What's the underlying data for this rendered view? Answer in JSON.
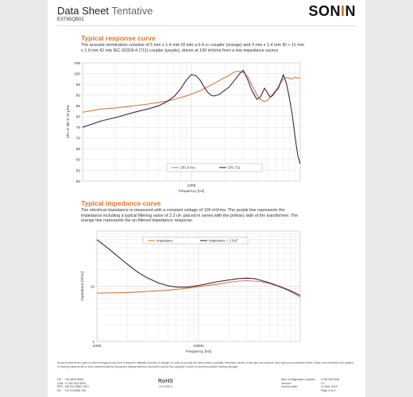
{
  "header": {
    "title_main": "Data Sheet",
    "title_status": "Tentative",
    "product_code": "EST65QB02",
    "logo_pre": "SON",
    "logo_o": "I",
    "logo_post": "N"
  },
  "sections": [
    {
      "title": "Typical response curve",
      "description": "The acoustic termination consists of 5 mm x 1.4 mm ID into a 0.4 cc coupler (orange) and 3 mm x 1.4 mm ID + 11 mm x 1.9 mm ID into IEC 60318-4 (711) coupler (purple), driven at 100 mVrms from a low impedance source"
    },
    {
      "title": "Typical impedance curve",
      "description": "The electrical impedance is measured with a constant voltage of 100 mVrms. The purple line represents the impedance including a typical filtering value of 2.2 uF, placed in series with the primary side of the transformer. The orange line represents the un-filtered impedance response."
    }
  ],
  "chart_data": [
    {
      "type": "line",
      "x_scale": "log",
      "xlim": [
        100,
        10000
      ],
      "ylim": [
        50,
        105
      ],
      "ylabel": "SPL in dB re 20 µPa",
      "xlabel": "Frequency [Hz]",
      "x_tick_labels": [
        "1000"
      ],
      "y_tick_labels": [
        "105",
        "100",
        "95",
        "90",
        "85",
        "80",
        "75",
        "70",
        "65",
        "60",
        "55",
        "50"
      ],
      "grid": true,
      "legend_placement": "bottom-center",
      "series": [
        {
          "name": "SPL 0.4cc",
          "color": "#d77a38",
          "x": [
            100,
            150,
            200,
            300,
            400,
            500,
            600,
            700,
            800,
            900,
            1000,
            1200,
            1500,
            1700,
            2000,
            2200,
            2500,
            2700,
            3000,
            3300,
            3700,
            4000,
            4300,
            4700,
            5000,
            5300,
            5600,
            6000,
            6500,
            7000,
            7500,
            8000,
            8500,
            9000,
            9500,
            10000
          ],
          "y": [
            82,
            83.5,
            84,
            85,
            85.8,
            86.5,
            87.2,
            88,
            88.8,
            89.6,
            90.4,
            92,
            94.5,
            96,
            98,
            99,
            100.8,
            101,
            100.5,
            98.5,
            93.5,
            90,
            88,
            87,
            87.5,
            89,
            90.5,
            92.2,
            95.2,
            97.5,
            98.2,
            97.7,
            97.5,
            98.3,
            97.8,
            98
          ]
        },
        {
          "name": "SPL 711",
          "color": "#4a1d55",
          "x": [
            100,
            150,
            200,
            300,
            400,
            500,
            600,
            700,
            800,
            900,
            1000,
            1100,
            1200,
            1300,
            1400,
            1500,
            1600,
            1800,
            2000,
            2200,
            2500,
            2800,
            3000,
            3300,
            3600,
            4000,
            4300,
            4700,
            5000,
            5300,
            5600,
            6000,
            6300,
            6600,
            7000,
            7500,
            8000,
            8500,
            9000,
            9500,
            10000
          ],
          "y": [
            75,
            78,
            79.5,
            82,
            83.5,
            85,
            87,
            89.5,
            93,
            97,
            99.5,
            99,
            97,
            94,
            91.5,
            90,
            89.5,
            90.2,
            92,
            93.5,
            97,
            100.2,
            101.5,
            97,
            92,
            88,
            89,
            93.2,
            91,
            89,
            89.8,
            92,
            93,
            96,
            99.5,
            95,
            88,
            80,
            70,
            62,
            58
          ]
        }
      ]
    },
    {
      "type": "line",
      "x_scale": "log",
      "y_scale": "log",
      "xlim": [
        1000,
        100000
      ],
      "ylim": [
        1,
        100
      ],
      "ylabel": "Impedance [Ohm]",
      "xlabel": "Frequency [Hz]",
      "x_tick_labels": [
        "1000",
        "10000"
      ],
      "y_tick_labels": [
        "10",
        "1"
      ],
      "grid": true,
      "legend_placement": "top-center",
      "series": [
        {
          "name": "Impedance",
          "color": "#d77a38",
          "x": [
            1000,
            1500,
            2000,
            3000,
            5000,
            7000,
            10000,
            15000,
            20000,
            25000,
            30000,
            40000,
            50000,
            60000,
            70000,
            80000,
            100000
          ],
          "y": [
            7.5,
            7.6,
            7.7,
            8,
            8.5,
            9,
            9.8,
            10.8,
            11.8,
            12.4,
            12.6,
            12.2,
            11.2,
            10,
            9,
            8,
            6.4
          ]
        },
        {
          "name": "Impedance + 2.2uF",
          "color": "#4a1d55",
          "x": [
            1000,
            1300,
            1600,
            2000,
            2500,
            3000,
            4000,
            5000,
            6000,
            7000,
            8000,
            10000,
            12000,
            15000,
            20000,
            25000,
            30000,
            35000,
            40000,
            50000,
            60000,
            70000,
            80000,
            100000
          ],
          "y": [
            70,
            48,
            35,
            25,
            18.2,
            14.8,
            11.5,
            10.2,
            9.7,
            9.6,
            9.7,
            10.3,
            11,
            12,
            13,
            13.8,
            14,
            13.8,
            13,
            11.5,
            10.2,
            9.2,
            8.3,
            6.8
          ]
        }
      ]
    }
  ],
  "footer": {
    "disclaimer": "Sonion reserves the right to make changes at any time to improve reliability, function or design, in order to provide the best product possible. Receivers series of this type can produce very high sound pressure levels. When such receivers are applied in hearing instruments or other communications equipment special attention should be paid to this capacity in order to prevent possible hearing damage.",
    "contacts": [
      {
        "key": "DK:",
        "value": "+45 4630 6666"
      },
      {
        "key": "USA:",
        "value": "+1 952 943 6500"
      },
      {
        "key": "PRC:",
        "value": "+86 512 6662 3401"
      },
      {
        "key": "NL:",
        "value": "+31 20 6066 100"
      }
    ],
    "rohs_big": "RoHS",
    "rohs_small": "2011/65/EU",
    "meta": [
      {
        "key": "Item Configuration number:",
        "value": "2136-3207346"
      },
      {
        "key": "Version:",
        "value": "0.1"
      },
      {
        "key": "Version date:",
        "value": "12-Mar-2019"
      },
      {
        "key": "",
        "value": "Page 4 of 4"
      }
    ]
  }
}
